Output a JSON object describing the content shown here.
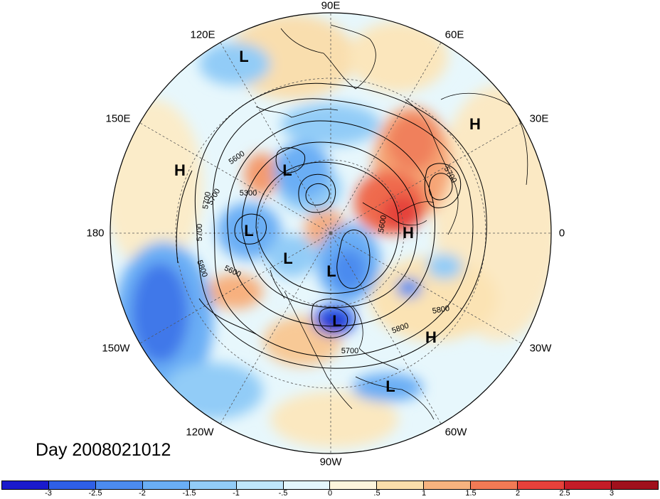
{
  "title": "Day 2008021012",
  "longitude_labels": {
    "lon_0": "0",
    "lon_30e": "30E",
    "lon_60e": "60E",
    "lon_90e": "90E",
    "lon_120e": "120E",
    "lon_150e": "150E",
    "lon_180": "180",
    "lon_150w": "150W",
    "lon_120w": "120W",
    "lon_90w": "90W",
    "lon_60w": "60W",
    "lon_30w": "30W"
  },
  "pressure_centers": [
    {
      "type": "L",
      "label": "L"
    },
    {
      "type": "L",
      "label": "L"
    },
    {
      "type": "L",
      "label": "L"
    },
    {
      "type": "L",
      "label": "L"
    },
    {
      "type": "L",
      "label": "L"
    },
    {
      "type": "L",
      "label": "L"
    },
    {
      "type": "L",
      "label": "L"
    },
    {
      "type": "H",
      "label": "H"
    },
    {
      "type": "H",
      "label": "H"
    },
    {
      "type": "H",
      "label": "H"
    },
    {
      "type": "H",
      "label": "H"
    }
  ],
  "contour_labels": [
    "5600",
    "5300",
    "5700",
    "5700",
    "5700",
    "5800",
    "5600",
    "5700",
    "5600",
    "5800",
    "5800",
    "5700"
  ],
  "colorbar": {
    "ticks": [
      "-3",
      "-2.5",
      "-2",
      "-1.5",
      "-1",
      "-.5",
      "0",
      ".5",
      "1",
      "1.5",
      "2",
      "2.5",
      "3"
    ],
    "colors": [
      "#1a1acc",
      "#2f5fe6",
      "#4c8bef",
      "#6aaef5",
      "#92ccf7",
      "#bfe6fb",
      "#e4f6fc",
      "#fdf5dc",
      "#f9deab",
      "#f7b37f",
      "#f27a55",
      "#e6413b",
      "#c41c28",
      "#a0101c"
    ]
  }
}
